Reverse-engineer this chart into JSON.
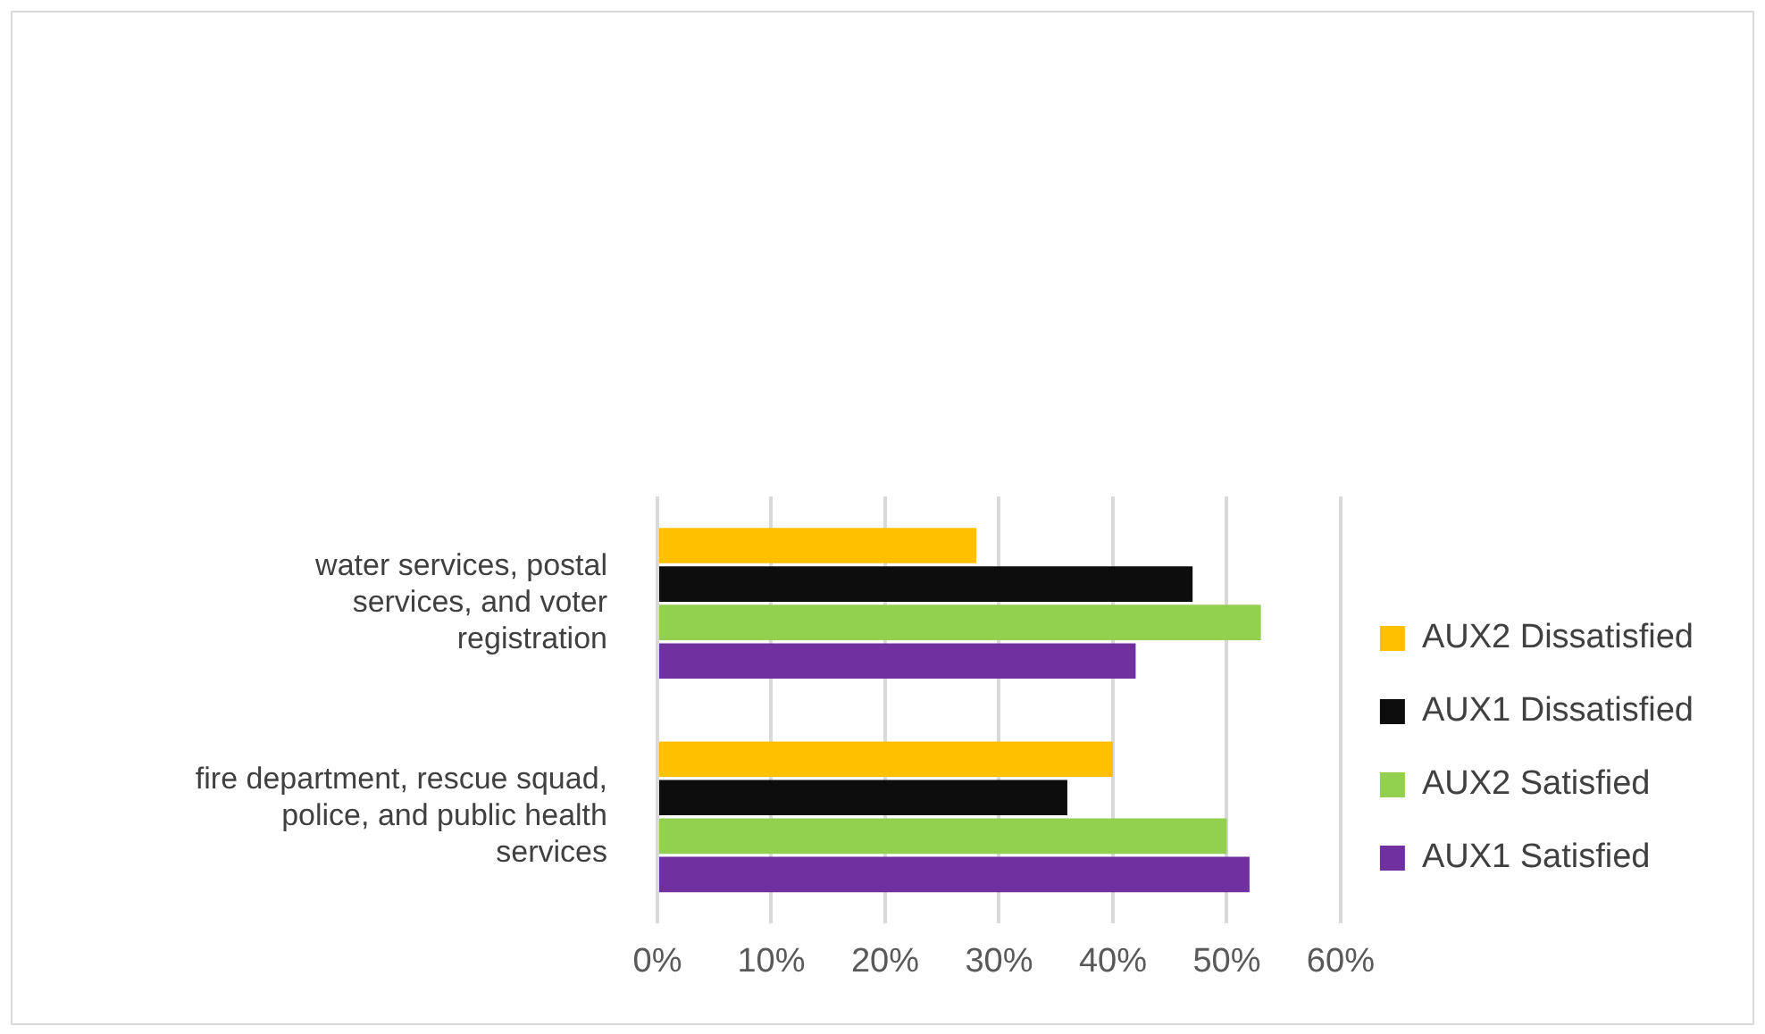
{
  "chart_data": {
    "type": "bar",
    "orientation": "horizontal",
    "categories": [
      "water services, postal services, and voter registration",
      "fire department, rescue squad, police, and public health services"
    ],
    "series": [
      {
        "name": "AUX2 Dissatisfied",
        "color": "#ffc000",
        "values": [
          28,
          40
        ]
      },
      {
        "name": "AUX1 Dissatisfied",
        "color": "#0d0d0d",
        "values": [
          47,
          36
        ]
      },
      {
        "name": "AUX2 Satisfied",
        "color": "#92d050",
        "values": [
          53,
          50
        ]
      },
      {
        "name": "AUX1 Satisfied",
        "color": "#7030a0",
        "values": [
          42,
          52
        ]
      }
    ],
    "xlim": [
      0,
      60
    ],
    "xticks": [
      {
        "value": 0,
        "label": "0%"
      },
      {
        "value": 10,
        "label": "10%"
      },
      {
        "value": 20,
        "label": "20%"
      },
      {
        "value": 30,
        "label": "30%"
      },
      {
        "value": 40,
        "label": "40%"
      },
      {
        "value": 50,
        "label": "50%"
      },
      {
        "value": 60,
        "label": "60%"
      }
    ],
    "grid": "x",
    "legend": "right"
  }
}
